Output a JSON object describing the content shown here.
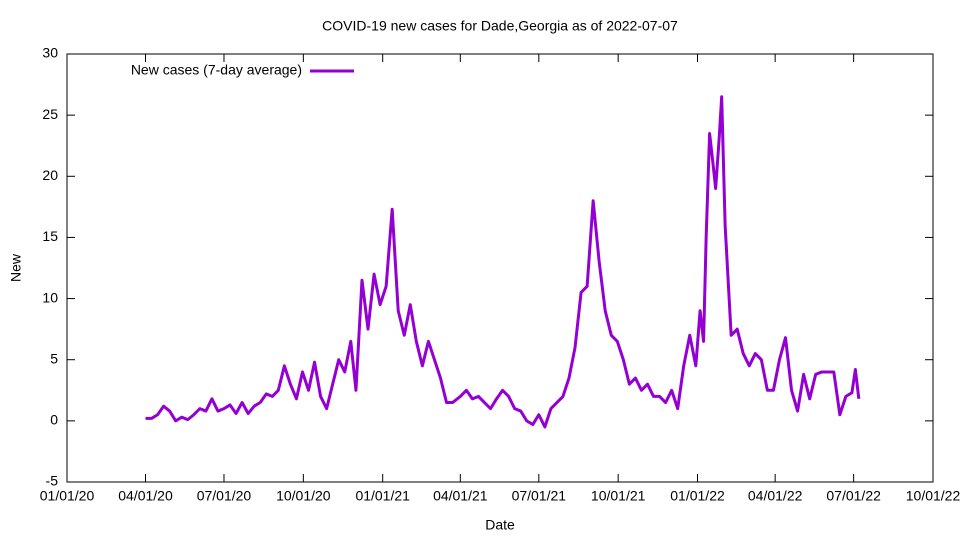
{
  "chart_data": {
    "type": "line",
    "title": "COVID-19 new cases for Dade,Georgia as of 2022-07-07",
    "x_label": "Date",
    "y_label": "New",
    "x": [
      "2020-04-01",
      "2020-04-08",
      "2020-04-15",
      "2020-04-22",
      "2020-04-29",
      "2020-05-06",
      "2020-05-13",
      "2020-05-20",
      "2020-05-27",
      "2020-06-03",
      "2020-06-10",
      "2020-06-17",
      "2020-06-24",
      "2020-07-01",
      "2020-07-08",
      "2020-07-15",
      "2020-07-22",
      "2020-07-29",
      "2020-08-05",
      "2020-08-12",
      "2020-08-19",
      "2020-08-26",
      "2020-09-02",
      "2020-09-09",
      "2020-09-16",
      "2020-09-23",
      "2020-09-30",
      "2020-10-07",
      "2020-10-14",
      "2020-10-21",
      "2020-10-28",
      "2020-11-04",
      "2020-11-11",
      "2020-11-18",
      "2020-11-25",
      "2020-12-01",
      "2020-12-08",
      "2020-12-15",
      "2020-12-22",
      "2020-12-29",
      "2021-01-05",
      "2021-01-12",
      "2021-01-19",
      "2021-01-26",
      "2021-02-02",
      "2021-02-09",
      "2021-02-16",
      "2021-02-23",
      "2021-03-02",
      "2021-03-09",
      "2021-03-16",
      "2021-03-23",
      "2021-04-01",
      "2021-04-08",
      "2021-04-15",
      "2021-04-22",
      "2021-04-29",
      "2021-05-06",
      "2021-05-13",
      "2021-05-20",
      "2021-05-27",
      "2021-06-03",
      "2021-06-10",
      "2021-06-17",
      "2021-06-24",
      "2021-07-01",
      "2021-07-08",
      "2021-07-15",
      "2021-07-22",
      "2021-07-29",
      "2021-08-05",
      "2021-08-12",
      "2021-08-19",
      "2021-08-26",
      "2021-09-02",
      "2021-09-09",
      "2021-09-16",
      "2021-09-23",
      "2021-09-30",
      "2021-10-07",
      "2021-10-14",
      "2021-10-21",
      "2021-10-28",
      "2021-11-04",
      "2021-11-11",
      "2021-11-18",
      "2021-11-25",
      "2021-12-02",
      "2021-12-09",
      "2021-12-16",
      "2021-12-23",
      "2021-12-30",
      "2022-01-04",
      "2022-01-08",
      "2022-01-11",
      "2022-01-15",
      "2022-01-19",
      "2022-01-22",
      "2022-01-26",
      "2022-01-29",
      "2022-02-02",
      "2022-02-09",
      "2022-02-16",
      "2022-02-23",
      "2022-03-02",
      "2022-03-09",
      "2022-03-16",
      "2022-03-23",
      "2022-03-30",
      "2022-04-06",
      "2022-04-13",
      "2022-04-20",
      "2022-04-27",
      "2022-05-04",
      "2022-05-11",
      "2022-05-18",
      "2022-05-25",
      "2022-06-01",
      "2022-06-08",
      "2022-06-15",
      "2022-06-22",
      "2022-06-29",
      "2022-07-03",
      "2022-07-07"
    ],
    "series": [
      {
        "name": "New cases (7-day average)",
        "color": "#9400d3",
        "values": [
          0.2,
          0.2,
          0.5,
          1.2,
          0.8,
          0,
          0.3,
          0.1,
          0.5,
          1.0,
          0.8,
          1.8,
          0.8,
          1.0,
          1.3,
          0.6,
          1.5,
          0.6,
          1.2,
          1.5,
          2.2,
          2.0,
          2.5,
          4.5,
          3.0,
          1.8,
          4.0,
          2.5,
          4.8,
          2.0,
          1.0,
          3.0,
          5.0,
          4.0,
          6.5,
          2.5,
          11.5,
          7.5,
          12.0,
          9.5,
          11.0,
          17.3,
          9.0,
          7.0,
          9.5,
          6.5,
          4.5,
          6.5,
          5.0,
          3.5,
          1.5,
          1.5,
          2.0,
          2.5,
          1.8,
          2.0,
          1.5,
          1.0,
          1.8,
          2.5,
          2.0,
          1.0,
          0.8,
          0,
          -0.3,
          0.5,
          -0.5,
          1.0,
          1.5,
          2.0,
          3.5,
          6.0,
          10.5,
          11.0,
          18.0,
          13.0,
          9.0,
          7.0,
          6.5,
          5.0,
          3.0,
          3.5,
          2.5,
          3.0,
          2.0,
          2.0,
          1.5,
          2.5,
          1.0,
          4.5,
          7.0,
          4.5,
          9.0,
          6.5,
          15.0,
          23.5,
          21.0,
          19.0,
          23.0,
          26.5,
          16.0,
          7.0,
          7.5,
          5.5,
          4.5,
          5.5,
          5.0,
          2.5,
          2.5,
          5.0,
          6.8,
          2.5,
          0.8,
          3.8,
          1.8,
          3.8,
          4.0,
          4.0,
          4.0,
          0.5,
          2.0,
          2.3,
          4.2,
          1.8
        ]
      }
    ],
    "xlim": [
      "2020-01-01",
      "2022-10-01"
    ],
    "xticks": [
      {
        "value": "2020-01-01",
        "label": "01/01/20"
      },
      {
        "value": "2020-04-01",
        "label": "04/01/20"
      },
      {
        "value": "2020-07-01",
        "label": "07/01/20"
      },
      {
        "value": "2020-10-01",
        "label": "10/01/20"
      },
      {
        "value": "2021-01-01",
        "label": "01/01/21"
      },
      {
        "value": "2021-04-01",
        "label": "04/01/21"
      },
      {
        "value": "2021-07-01",
        "label": "07/01/21"
      },
      {
        "value": "2021-10-01",
        "label": "10/01/21"
      },
      {
        "value": "2022-01-01",
        "label": "01/01/22"
      },
      {
        "value": "2022-04-01",
        "label": "04/01/22"
      },
      {
        "value": "2022-07-01",
        "label": "07/01/22"
      },
      {
        "value": "2022-10-01",
        "label": "10/01/22"
      }
    ],
    "ylim": [
      -5,
      30
    ],
    "yticks": [
      -5,
      0,
      5,
      10,
      15,
      20,
      25,
      30
    ],
    "grid": false,
    "legend": "top-left"
  }
}
